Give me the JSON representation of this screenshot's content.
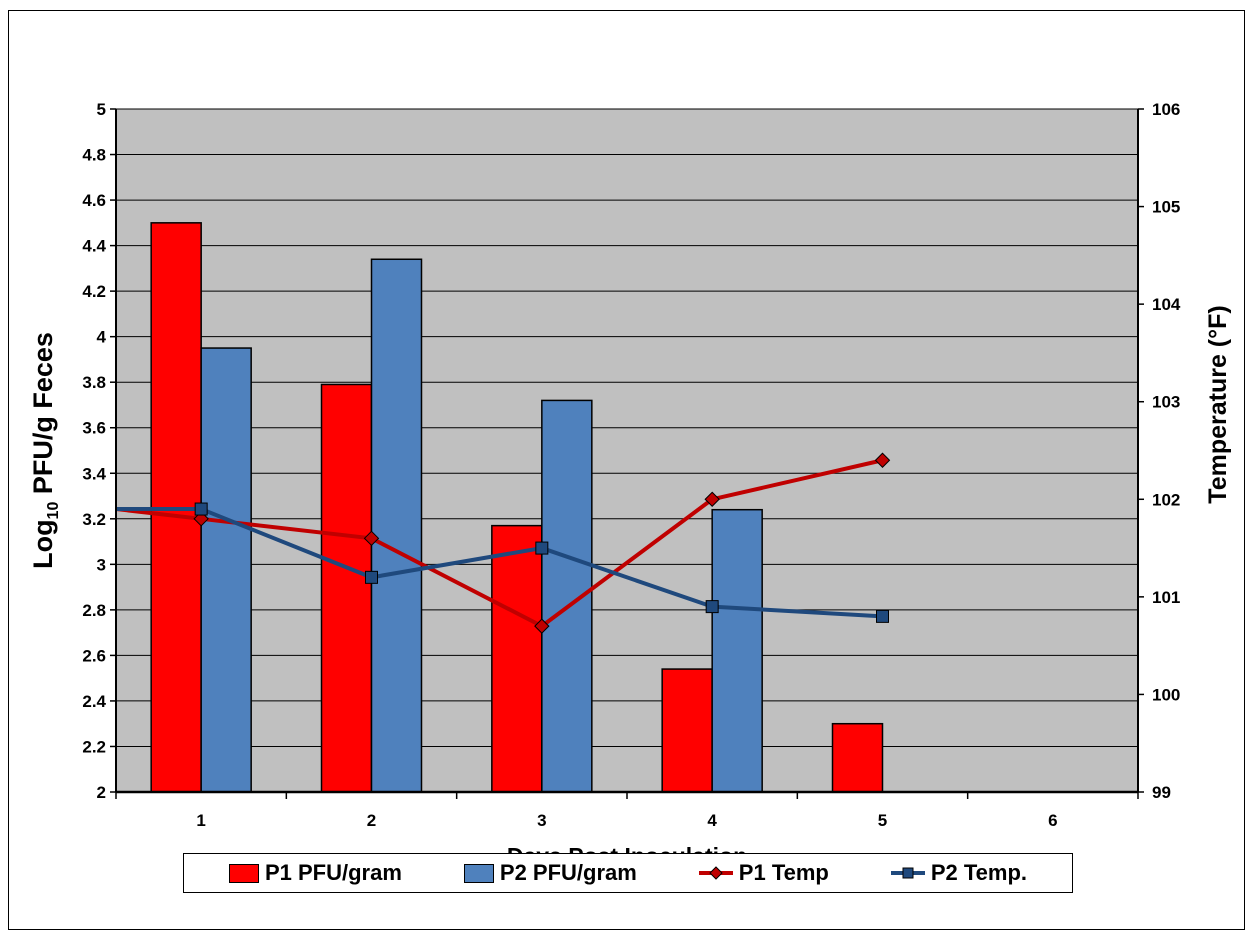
{
  "chart_data": {
    "type": "bar",
    "categories": [
      "1",
      "2",
      "3",
      "4",
      "5",
      "6"
    ],
    "xlabel": "Days Post Inoculation",
    "ylabel": {
      "prefix": "Log",
      "subscript": "10",
      "suffix": " PFU/g Feces"
    },
    "ylim": [
      2,
      5
    ],
    "yticks": [
      "2",
      "2.2",
      "2.4",
      "2.6",
      "2.8",
      "3",
      "3.2",
      "3.4",
      "3.6",
      "3.8",
      "4",
      "4.2",
      "4.4",
      "4.6",
      "4.8",
      "5"
    ],
    "y2label": "Temperature (°F)",
    "y2lim": [
      99,
      106
    ],
    "y2ticks": [
      "99",
      "100",
      "101",
      "102",
      "103",
      "104",
      "105",
      "106"
    ],
    "grid": true,
    "legend_position": "bottom",
    "series": [
      {
        "name": "P1 PFU/gram",
        "kind": "bar",
        "axis": "left",
        "color": "#ff0000",
        "values": [
          4.5,
          3.79,
          3.17,
          2.54,
          2.3,
          null
        ]
      },
      {
        "name": "P2 PFU/gram",
        "kind": "bar",
        "axis": "left",
        "color": "#4f81bd",
        "values": [
          3.95,
          4.34,
          3.72,
          3.24,
          null,
          null
        ]
      },
      {
        "name": "P1 Temp",
        "kind": "line",
        "axis": "right",
        "color": "#c00000",
        "marker": "diamond",
        "start_value": 101.9,
        "values": [
          101.8,
          101.6,
          100.7,
          102.0,
          102.4,
          null
        ]
      },
      {
        "name": "P2 Temp.",
        "kind": "line",
        "axis": "right",
        "color": "#1f497d",
        "marker": "square",
        "start_value": 101.9,
        "values": [
          101.9,
          101.2,
          101.5,
          100.9,
          100.8,
          null
        ]
      }
    ]
  }
}
